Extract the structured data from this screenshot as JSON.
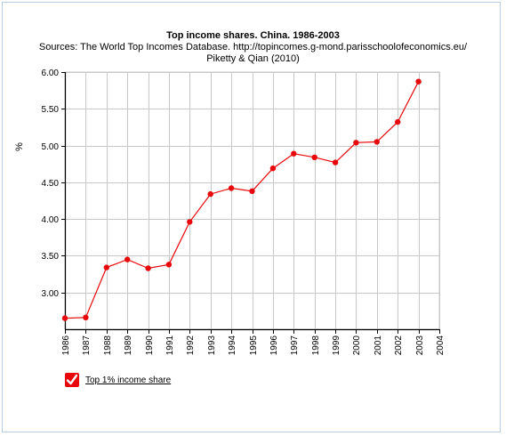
{
  "chart_data": {
    "type": "line",
    "title": "Top income shares. China. 1986-2003",
    "subtitle_line1": "Sources: The World Top Incomes Database. http://topincomes.g-mond.parisschoolofeconomics.eu/",
    "subtitle_line2": "Piketty & Qian (2010)",
    "ylabel": "%",
    "xlim": [
      1986,
      2004
    ],
    "ylim": [
      2.5,
      6.0
    ],
    "y_ticks": [
      "3.00",
      "3.50",
      "4.00",
      "4.50",
      "5.00",
      "5.50",
      "6.00"
    ],
    "x_ticks": [
      "1986",
      "1987",
      "1988",
      "1989",
      "1990",
      "1991",
      "1992",
      "1993",
      "1994",
      "1995",
      "1996",
      "1997",
      "1998",
      "1999",
      "2000",
      "2001",
      "2002",
      "2003",
      "2004"
    ],
    "grid": true,
    "legend_position": "bottom-left",
    "series": [
      {
        "name": "Top 1% income share",
        "color": "#e8080b",
        "x": [
          1986,
          1987,
          1988,
          1989,
          1990,
          1991,
          1992,
          1993,
          1994,
          1995,
          1996,
          1997,
          1998,
          1999,
          2000,
          2001,
          2002,
          2003
        ],
        "values": [
          2.65,
          2.66,
          3.34,
          3.45,
          3.33,
          3.38,
          3.96,
          4.34,
          4.42,
          4.38,
          4.69,
          4.89,
          4.84,
          4.77,
          5.04,
          5.05,
          5.32,
          5.87
        ]
      }
    ]
  }
}
